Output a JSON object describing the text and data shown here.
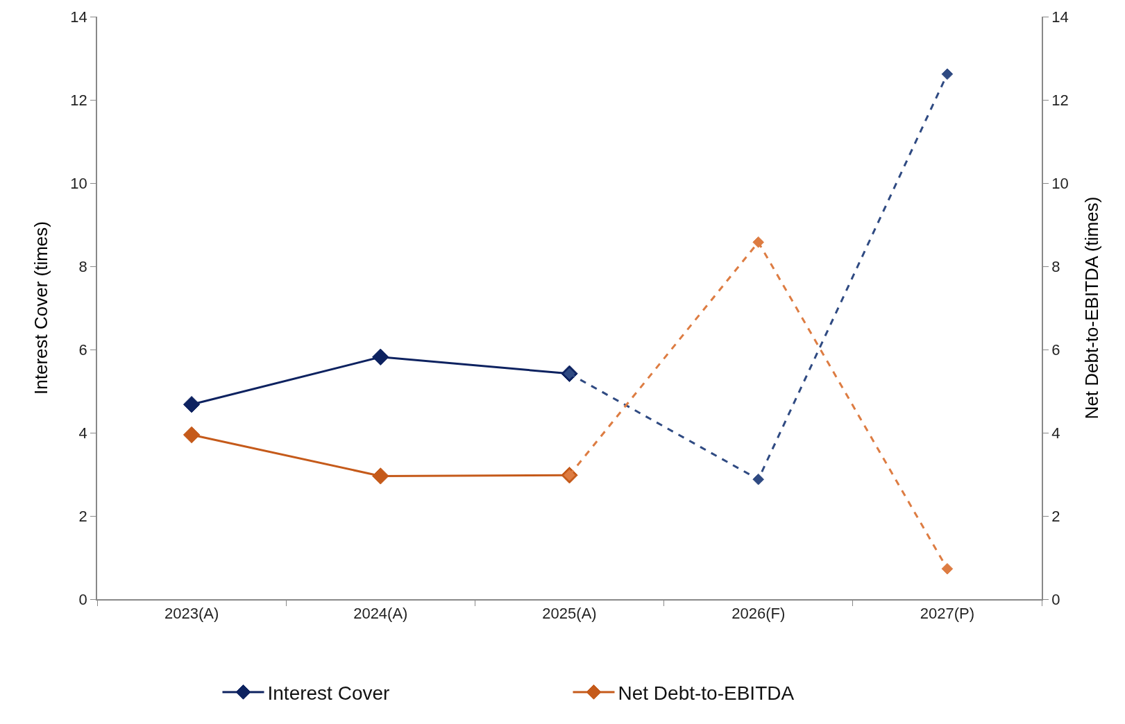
{
  "chart_data": {
    "type": "line",
    "categories": [
      "2023(A)",
      "2024(A)",
      "2025(A)",
      "2026(F)",
      "2027(P)"
    ],
    "ylabel": "Interest Cover (times)",
    "y2label": "Net Debt-to-EBITDA (times)",
    "ylim": [
      0,
      14
    ],
    "yticks": [
      0,
      2,
      4,
      6,
      8,
      10,
      12,
      14
    ],
    "y2lim": [
      0,
      14
    ],
    "y2ticks": [
      0,
      2,
      4,
      6,
      8,
      10,
      12,
      14
    ],
    "grid": false,
    "legend": "bottom",
    "marker": "diamond",
    "series": [
      {
        "name": "Interest Cover",
        "color": "#0d2260",
        "line_style": "solid",
        "values": [
          4.68,
          5.82,
          5.42,
          null,
          null
        ]
      },
      {
        "color": "#2f4a82",
        "line_style": "dashed",
        "values": [
          null,
          null,
          5.42,
          2.88,
          12.62
        ]
      },
      {
        "name": "Net Debt-to-EBITDA",
        "color": "#c55a1a",
        "line_style": "solid",
        "axis": "y2",
        "values": [
          3.95,
          2.96,
          2.98,
          null,
          null
        ]
      },
      {
        "color": "#dd7c42",
        "line_style": "dashed",
        "axis": "y2",
        "values": [
          null,
          null,
          2.98,
          8.58,
          0.73
        ]
      }
    ]
  }
}
